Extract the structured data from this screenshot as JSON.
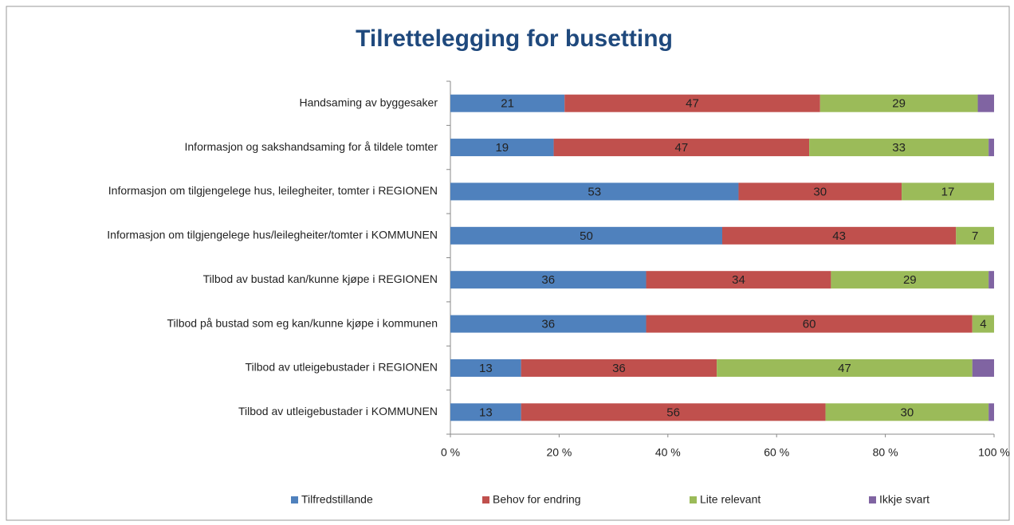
{
  "chart_data": {
    "type": "stacked_barh",
    "title": "Tilrettelegging for busetting",
    "categories": [
      "Handsaming av byggesaker",
      "Informasjon og sakshandsaming for å tildele tomter",
      "Informasjon om tilgjengelege hus, leilegheiter, tomter i REGIONEN",
      "Informasjon om tilgjengelege hus/leilegheiter/tomter i KOMMUNEN",
      "Tilbod av bustad kan/kunne kjøpe  i REGIONEN",
      "Tilbod på bustad som eg kan/kunne kjøpe i kommunen",
      "Tilbod av utleigebustader i REGIONEN",
      "Tilbod av utleigebustader i KOMMUNEN"
    ],
    "series": [
      {
        "name": "Tilfredstillande",
        "color": "#4f81bd",
        "values": [
          21,
          19,
          53,
          50,
          36,
          36,
          13,
          13
        ],
        "data_labels": true
      },
      {
        "name": "Behov for endring",
        "color": "#c0504d",
        "values": [
          47,
          47,
          30,
          43,
          34,
          60,
          36,
          56
        ],
        "data_labels": true
      },
      {
        "name": "Lite relevant",
        "color": "#9bbb59",
        "values": [
          29,
          33,
          17,
          7,
          29,
          4,
          47,
          30
        ],
        "data_labels": true
      },
      {
        "name": "Ikkje svart",
        "color": "#8064a2",
        "values": [
          3,
          1,
          0,
          0,
          1,
          0,
          4,
          1
        ],
        "data_labels": false
      }
    ],
    "xlim": [
      0,
      100
    ],
    "xticks": [
      {
        "value": 0,
        "label": "0 %"
      },
      {
        "value": 20,
        "label": "20 %"
      },
      {
        "value": 40,
        "label": "40 %"
      },
      {
        "value": 60,
        "label": "60 %"
      },
      {
        "value": 80,
        "label": "80 %"
      },
      {
        "value": 100,
        "label": "100 %"
      }
    ],
    "legend": "bottom"
  }
}
